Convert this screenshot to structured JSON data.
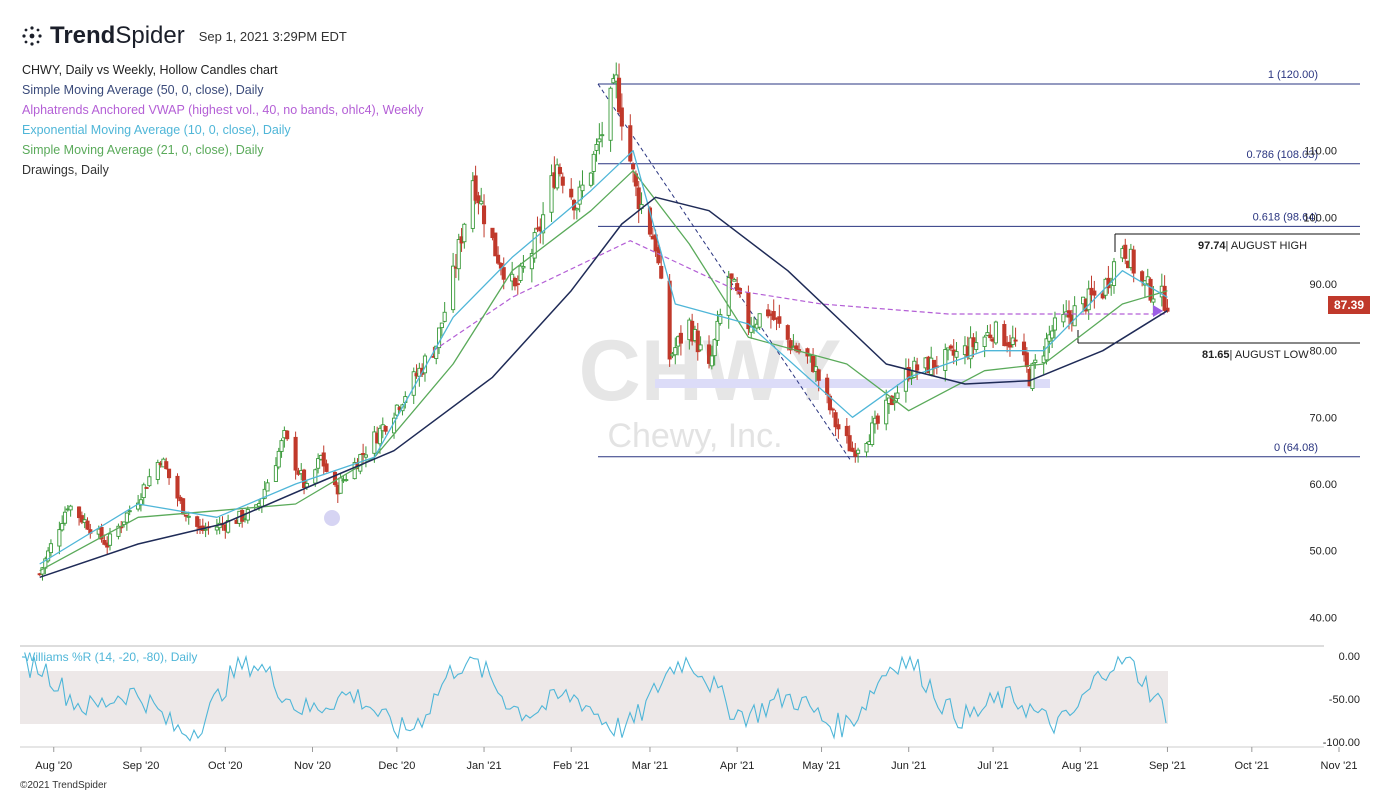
{
  "header": {
    "brand_bold": "Trend",
    "brand_light": "Spider",
    "timestamp": "Sep 1, 2021 3:29PM EDT"
  },
  "legend": [
    {
      "text": "CHWY, Daily vs Weekly, Hollow Candles chart",
      "color": "#222222"
    },
    {
      "text": "Simple Moving Average (50, 0, close), Daily",
      "color": "#3a4a7a"
    },
    {
      "text": "Alphatrends Anchored VWAP (highest vol., 40, no bands, ohlc4), Weekly",
      "color": "#b45fd6"
    },
    {
      "text": "Exponential Moving Average (10, 0, close), Daily",
      "color": "#4fb6d8"
    },
    {
      "text": "Simple Moving Average (21, 0, close), Daily",
      "color": "#5aaa5a"
    },
    {
      "text": "Drawings, Daily",
      "color": "#333333"
    }
  ],
  "footer": "©2021 TrendSpider",
  "watermark": {
    "ticker": "CHWY",
    "name": "Chewy, Inc."
  },
  "last_price": "87.39",
  "colors": {
    "up": "#3a9a3a",
    "down": "#c0392b",
    "sma50": "#1f2b57",
    "ema10": "#4fb6d8",
    "sma21": "#5aaa5a",
    "vwap": "#b45fd6",
    "fib": "#2a3580",
    "wpr": "#4fb6d8"
  },
  "chart_data": [
    {
      "type": "candlestick",
      "x_labels": [
        "Aug '20",
        "Sep '20",
        "Oct '20",
        "Nov '20",
        "Dec '20",
        "Jan '21",
        "Feb '21",
        "Mar '21",
        "Apr '21",
        "May '21",
        "Jun '21",
        "Jul '21",
        "Aug '21",
        "Sep '21",
        "Oct '21",
        "Nov '21"
      ],
      "y_ticks": [
        "110.00",
        "100.00",
        "90.00",
        "80.00",
        "70.00",
        "60.00",
        "50.00",
        "40.00"
      ],
      "ylim": [
        35,
        123
      ],
      "price_path": [
        [
          "2020-07-27",
          46.5
        ],
        [
          "2020-08-06",
          57
        ],
        [
          "2020-08-13",
          54
        ],
        [
          "2020-08-20",
          51
        ],
        [
          "2020-08-31",
          58
        ],
        [
          "2020-09-08",
          64
        ],
        [
          "2020-09-15",
          57
        ],
        [
          "2020-09-22",
          53
        ],
        [
          "2020-10-01",
          54
        ],
        [
          "2020-10-12",
          56
        ],
        [
          "2020-10-22",
          67
        ],
        [
          "2020-10-30",
          59
        ],
        [
          "2020-11-04",
          64
        ],
        [
          "2020-11-09",
          59
        ],
        [
          "2020-11-16",
          63
        ],
        [
          "2020-11-25",
          68
        ],
        [
          "2020-12-03",
          73
        ],
        [
          "2020-12-15",
          81
        ],
        [
          "2020-12-21",
          91
        ],
        [
          "2020-12-28",
          106
        ],
        [
          "2021-01-05",
          95
        ],
        [
          "2021-01-12",
          89
        ],
        [
          "2021-01-20",
          97
        ],
        [
          "2021-01-27",
          108
        ],
        [
          "2021-02-03",
          102
        ],
        [
          "2021-02-10",
          110
        ],
        [
          "2021-02-17",
          120
        ],
        [
          "2021-02-24",
          104
        ],
        [
          "2021-03-03",
          96
        ],
        [
          "2021-03-08",
          79
        ],
        [
          "2021-03-15",
          84
        ],
        [
          "2021-03-22",
          77
        ],
        [
          "2021-03-29",
          91
        ],
        [
          "2021-04-05",
          84
        ],
        [
          "2021-04-12",
          86
        ],
        [
          "2021-04-20",
          81
        ],
        [
          "2021-04-28",
          78
        ],
        [
          "2021-05-06",
          69
        ],
        [
          "2021-05-12",
          65
        ],
        [
          "2021-05-21",
          69
        ],
        [
          "2021-06-01",
          77
        ],
        [
          "2021-06-10",
          78
        ],
        [
          "2021-06-21",
          80
        ],
        [
          "2021-07-01",
          83
        ],
        [
          "2021-07-09",
          81
        ],
        [
          "2021-07-14",
          76
        ],
        [
          "2021-07-22",
          83
        ],
        [
          "2021-08-02",
          87
        ],
        [
          "2021-08-09",
          89
        ],
        [
          "2021-08-16",
          96
        ],
        [
          "2021-08-23",
          90
        ],
        [
          "2021-09-01",
          87.39
        ]
      ],
      "sma50": [
        [
          "2020-07-27",
          46
        ],
        [
          "2020-08-31",
          51
        ],
        [
          "2020-09-30",
          54
        ],
        [
          "2020-11-02",
          60
        ],
        [
          "2020-11-30",
          65
        ],
        [
          "2021-01-04",
          76
        ],
        [
          "2021-02-01",
          89
        ],
        [
          "2021-02-19",
          99
        ],
        [
          "2021-03-03",
          103
        ],
        [
          "2021-03-22",
          101
        ],
        [
          "2021-04-19",
          92
        ],
        [
          "2021-05-24",
          78
        ],
        [
          "2021-06-21",
          75
        ],
        [
          "2021-07-14",
          75.5
        ],
        [
          "2021-08-09",
          80
        ],
        [
          "2021-09-01",
          86
        ]
      ],
      "sma21": [
        [
          "2020-07-27",
          47
        ],
        [
          "2020-08-31",
          55
        ],
        [
          "2020-09-28",
          56
        ],
        [
          "2020-10-26",
          57
        ],
        [
          "2020-11-23",
          64
        ],
        [
          "2020-12-21",
          78
        ],
        [
          "2021-01-11",
          92
        ],
        [
          "2021-02-08",
          101
        ],
        [
          "2021-02-23",
          107
        ],
        [
          "2021-03-15",
          96
        ],
        [
          "2021-04-05",
          82
        ],
        [
          "2021-05-10",
          78
        ],
        [
          "2021-06-01",
          71
        ],
        [
          "2021-06-28",
          77
        ],
        [
          "2021-07-19",
          78
        ],
        [
          "2021-08-16",
          87
        ],
        [
          "2021-09-01",
          89
        ]
      ],
      "ema10": [
        [
          "2020-07-27",
          48
        ],
        [
          "2020-08-31",
          57
        ],
        [
          "2020-09-28",
          55
        ],
        [
          "2020-10-26",
          60
        ],
        [
          "2020-11-23",
          64
        ],
        [
          "2020-12-21",
          85
        ],
        [
          "2021-01-11",
          94
        ],
        [
          "2021-02-08",
          104
        ],
        [
          "2021-02-23",
          110
        ],
        [
          "2021-03-10",
          87
        ],
        [
          "2021-04-05",
          84
        ],
        [
          "2021-05-12",
          70
        ],
        [
          "2021-06-01",
          76
        ],
        [
          "2021-06-28",
          80
        ],
        [
          "2021-07-19",
          80
        ],
        [
          "2021-08-16",
          92
        ],
        [
          "2021-09-01",
          88
        ]
      ],
      "vwap": [
        [
          "2020-12-14",
          80
        ],
        [
          "2021-01-11",
          88
        ],
        [
          "2021-02-22",
          96.5
        ],
        [
          "2021-04-01",
          89
        ],
        [
          "2021-05-01",
          87
        ],
        [
          "2021-06-15",
          85.5
        ],
        [
          "2021-09-01",
          85.5
        ]
      ],
      "fib_levels": [
        {
          "label": "1 (120.00)",
          "value": 120.0
        },
        {
          "label": "0.786 (108.03)",
          "value": 108.03
        },
        {
          "label": "0.618 (98.64)",
          "value": 98.64
        },
        {
          "label": "0 (64.08)",
          "value": 64.08
        }
      ],
      "annotations": [
        {
          "value": "97.74",
          "text": "| AUGUST HIGH"
        },
        {
          "value": "81.65",
          "text": "| AUGUST LOW"
        }
      ]
    },
    {
      "type": "line",
      "title": "Williams %R (14, -20, -80), Daily",
      "y_ticks": [
        "0.00",
        "-50.00",
        "-100.00"
      ],
      "ylim": [
        -100,
        0
      ],
      "band": [
        -80,
        -20
      ]
    }
  ]
}
